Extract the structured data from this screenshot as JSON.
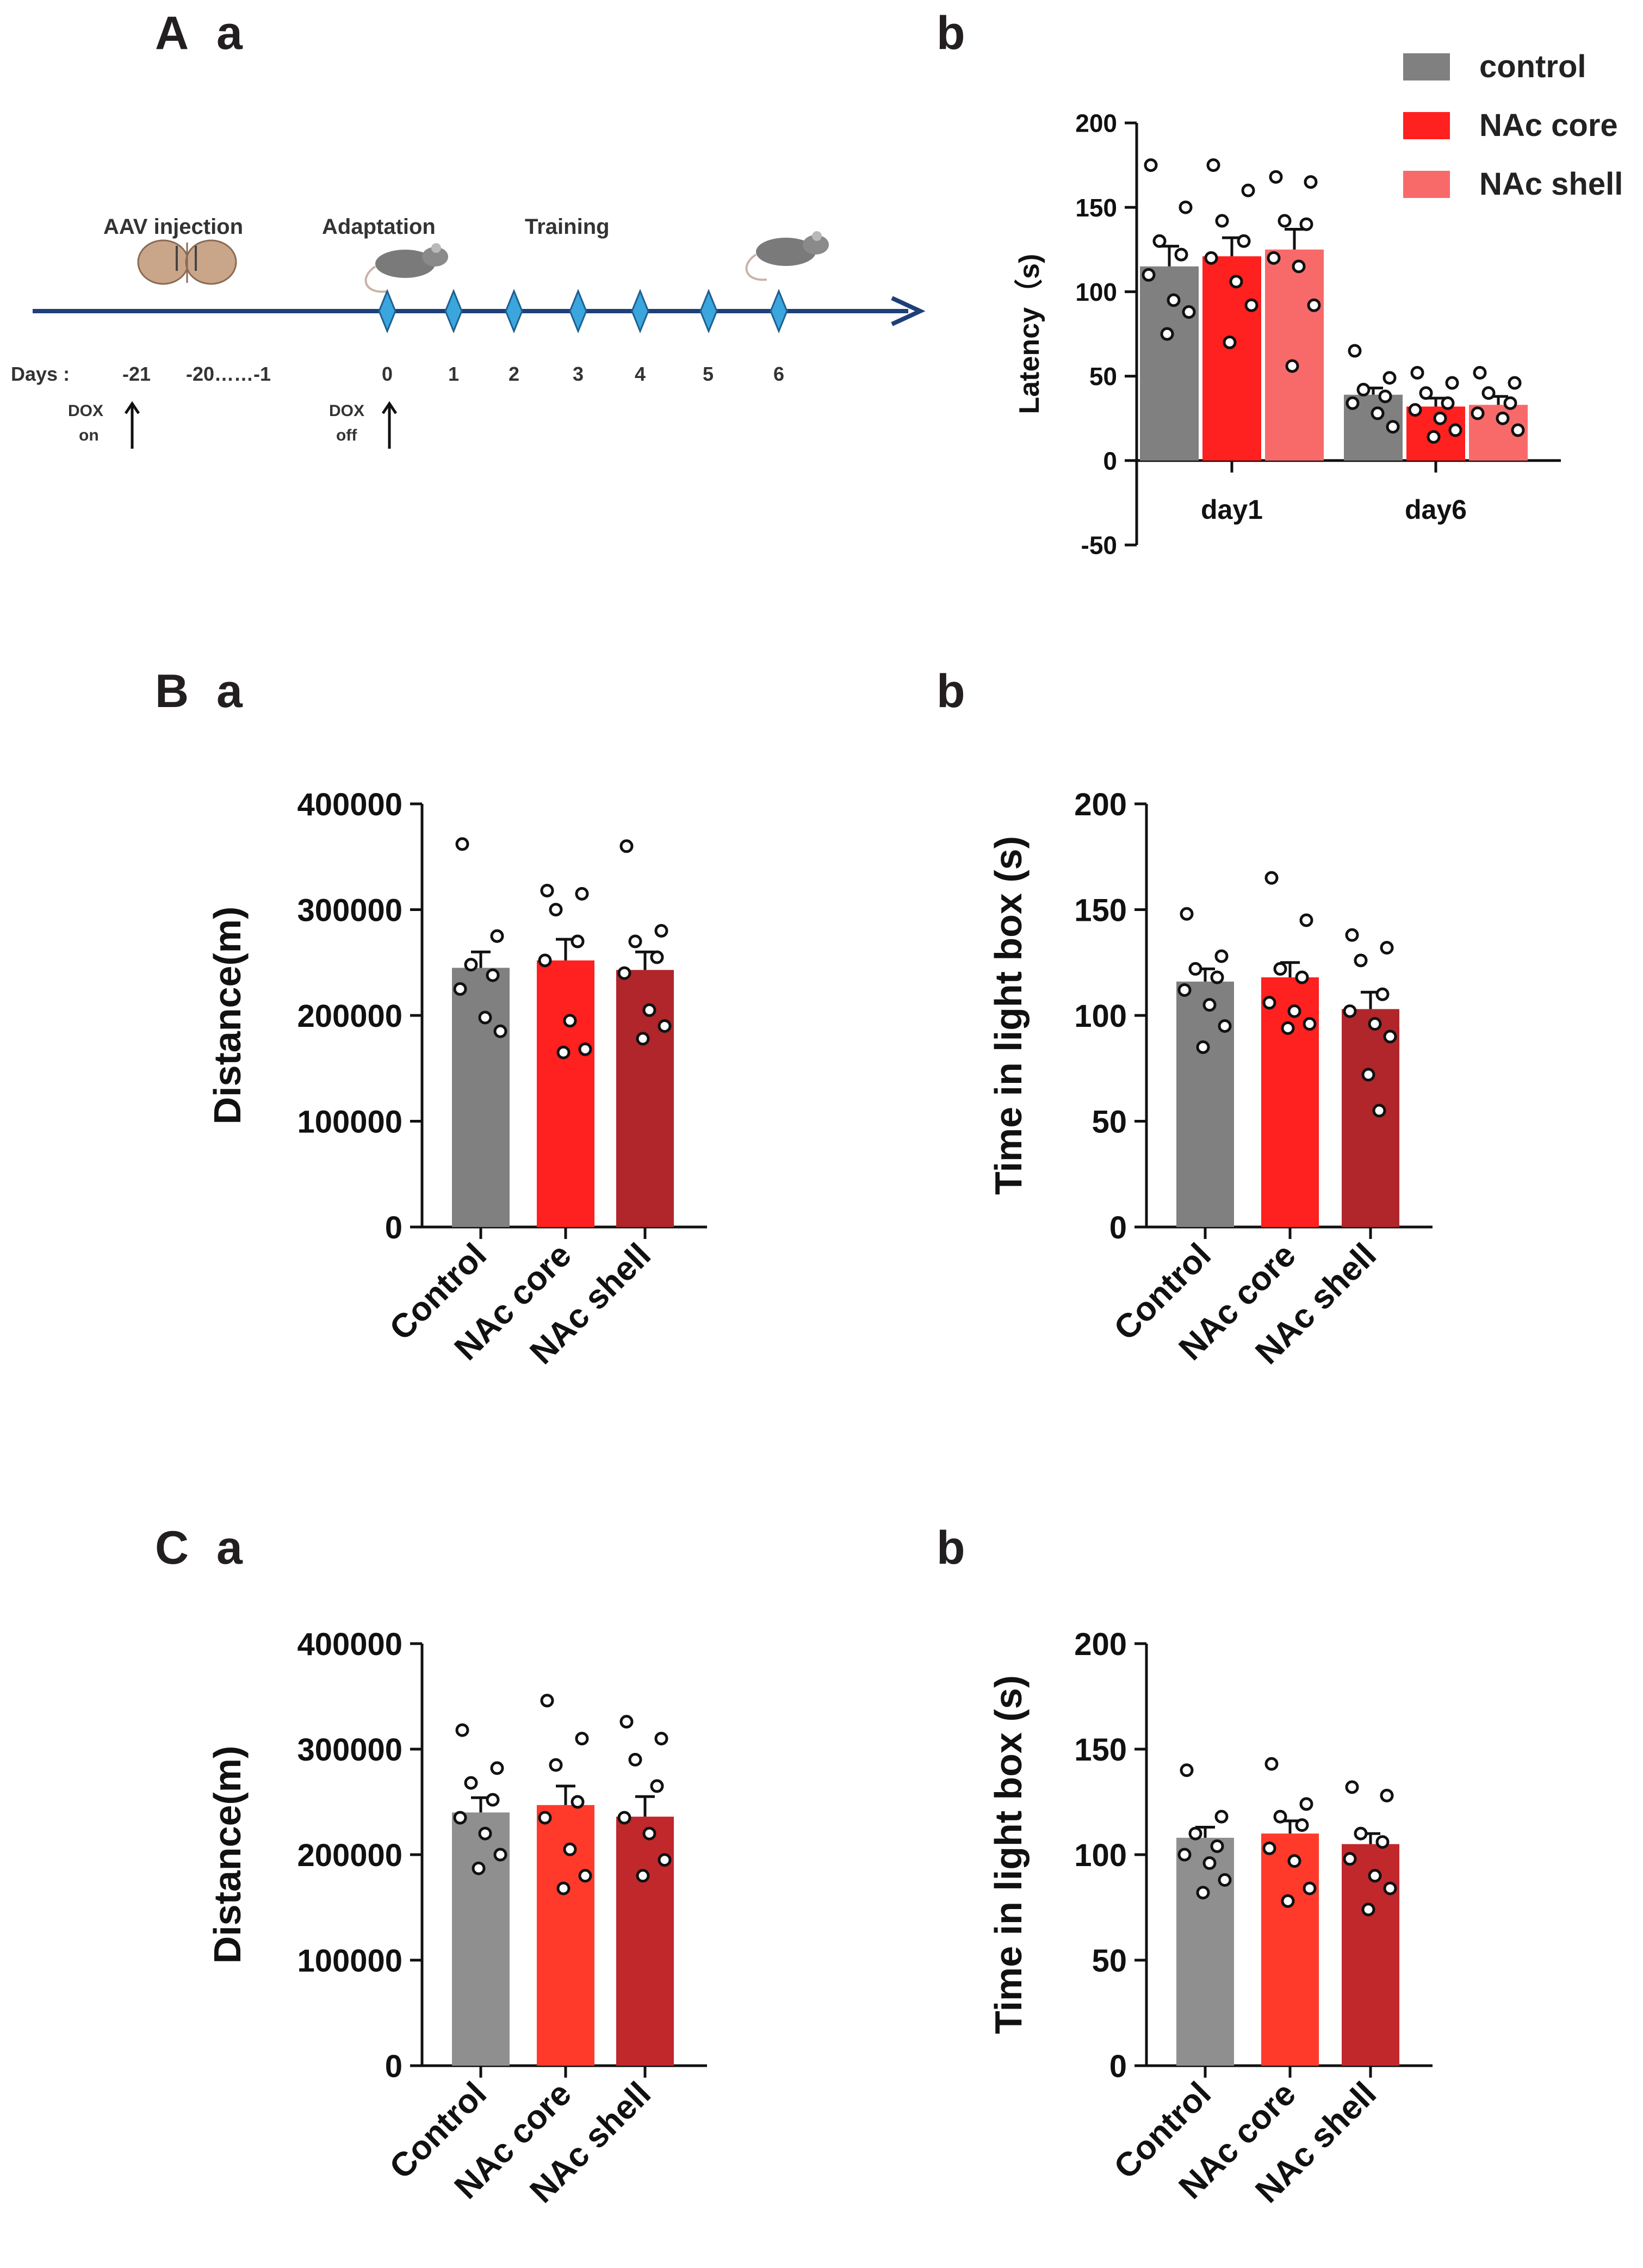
{
  "panels": {
    "A_label": "A",
    "A_sub": "a",
    "Ab_sub": "b",
    "B_label": "B",
    "B_sub": "a",
    "Bb_sub": "b",
    "C_label": "C",
    "C_sub": "a",
    "Cb_sub": "b"
  },
  "timeline": {
    "labels": {
      "aav": "AAV injection",
      "adaptation": "Adaptation",
      "training": "Training"
    },
    "days_label": "Days :",
    "days": [
      "-21",
      "-20……-1",
      "0",
      "1",
      "2",
      "3",
      "4",
      "5",
      "6"
    ],
    "dox_on": [
      "DOX",
      "on"
    ],
    "dox_off": [
      "DOX",
      "off"
    ],
    "axis_color": "#1f3f78",
    "marker_color": "#3aa6dd"
  },
  "colors": {
    "control": "#808080",
    "core": "#ff2020",
    "shell_light": "#f86a6a",
    "shell_dark": "#b0262a",
    "control_c": "#8f8f8f",
    "core_c": "#ff3a2a",
    "shell_c": "#c1282c"
  },
  "chart_data": [
    {
      "id": "Ab",
      "type": "bar",
      "ylabel": "Latency（s)",
      "ylim": [
        -50,
        200
      ],
      "yticks": [
        -50,
        0,
        50,
        100,
        150,
        200
      ],
      "categories": [
        "day1",
        "day6"
      ],
      "legend": [
        "control",
        "NAc core",
        "NAc shell"
      ],
      "series": [
        {
          "name": "control",
          "values": [
            115,
            39
          ],
          "sem": [
            12,
            4
          ],
          "points": [
            [
              175,
              150,
              130,
              122,
              110,
              95,
              88,
              75
            ],
            [
              65,
              49,
              42,
              38,
              34,
              28,
              20
            ]
          ]
        },
        {
          "name": "NAc core",
          "values": [
            121,
            32
          ],
          "sem": [
            11,
            5
          ],
          "points": [
            [
              175,
              160,
              142,
              130,
              120,
              106,
              92,
              70
            ],
            [
              52,
              46,
              40,
              34,
              30,
              25,
              18,
              14
            ]
          ]
        },
        {
          "name": "NAc shell",
          "values": [
            125,
            33
          ],
          "sem": [
            12,
            5
          ],
          "points": [
            [
              168,
              165,
              142,
              140,
              120,
              115,
              92,
              56
            ],
            [
              52,
              46,
              40,
              34,
              28,
              25,
              18
            ]
          ]
        }
      ]
    },
    {
      "id": "Ba",
      "type": "bar",
      "ylabel": "Distance(m)",
      "ylim": [
        0,
        400000
      ],
      "yticks": [
        0,
        100000,
        200000,
        300000,
        400000
      ],
      "categories": [
        "Control",
        "NAc core",
        "NAc shell"
      ],
      "values": [
        245000,
        252000,
        243000
      ],
      "sem": [
        15000,
        20000,
        17000
      ],
      "points": [
        [
          362000,
          275000,
          248000,
          238000,
          225000,
          198000,
          185000
        ],
        [
          318000,
          315000,
          300000,
          270000,
          252000,
          195000,
          168000,
          165000
        ],
        [
          360000,
          280000,
          270000,
          255000,
          240000,
          205000,
          190000,
          178000
        ]
      ]
    },
    {
      "id": "Bb",
      "type": "bar",
      "ylabel": "Time in light box (s)",
      "ylim": [
        0,
        200
      ],
      "yticks": [
        0,
        50,
        100,
        150,
        200
      ],
      "categories": [
        "Control",
        "NAc core",
        "NAc shell"
      ],
      "values": [
        116,
        118,
        103
      ],
      "sem": [
        6,
        7,
        8
      ],
      "points": [
        [
          148,
          128,
          122,
          118,
          112,
          105,
          95,
          85
        ],
        [
          165,
          145,
          122,
          118,
          106,
          102,
          96,
          94
        ],
        [
          138,
          132,
          126,
          110,
          102,
          96,
          90,
          72,
          55
        ]
      ]
    },
    {
      "id": "Ca",
      "type": "bar",
      "ylabel": "Distance(m)",
      "ylim": [
        0,
        400000
      ],
      "yticks": [
        0,
        100000,
        200000,
        300000,
        400000
      ],
      "categories": [
        "Control",
        "NAc core",
        "NAc shell"
      ],
      "values": [
        240000,
        247000,
        236000
      ],
      "sem": [
        14000,
        18000,
        19000
      ],
      "points": [
        [
          318000,
          282000,
          268000,
          252000,
          235000,
          220000,
          200000,
          187000
        ],
        [
          346000,
          310000,
          285000,
          250000,
          235000,
          205000,
          180000,
          168000
        ],
        [
          326000,
          310000,
          290000,
          265000,
          235000,
          220000,
          195000,
          180000
        ]
      ]
    },
    {
      "id": "Cb",
      "type": "bar",
      "ylabel": "Time in light box (s)",
      "ylim": [
        0,
        200
      ],
      "yticks": [
        0,
        50,
        100,
        150,
        200
      ],
      "categories": [
        "Control",
        "NAc core",
        "NAc shell"
      ],
      "values": [
        108,
        110,
        105
      ],
      "sem": [
        5,
        6,
        5
      ],
      "points": [
        [
          140,
          118,
          110,
          104,
          100,
          96,
          88,
          82
        ],
        [
          143,
          124,
          118,
          114,
          103,
          97,
          84,
          78
        ],
        [
          132,
          128,
          110,
          106,
          98,
          90,
          84,
          74
        ]
      ]
    }
  ]
}
